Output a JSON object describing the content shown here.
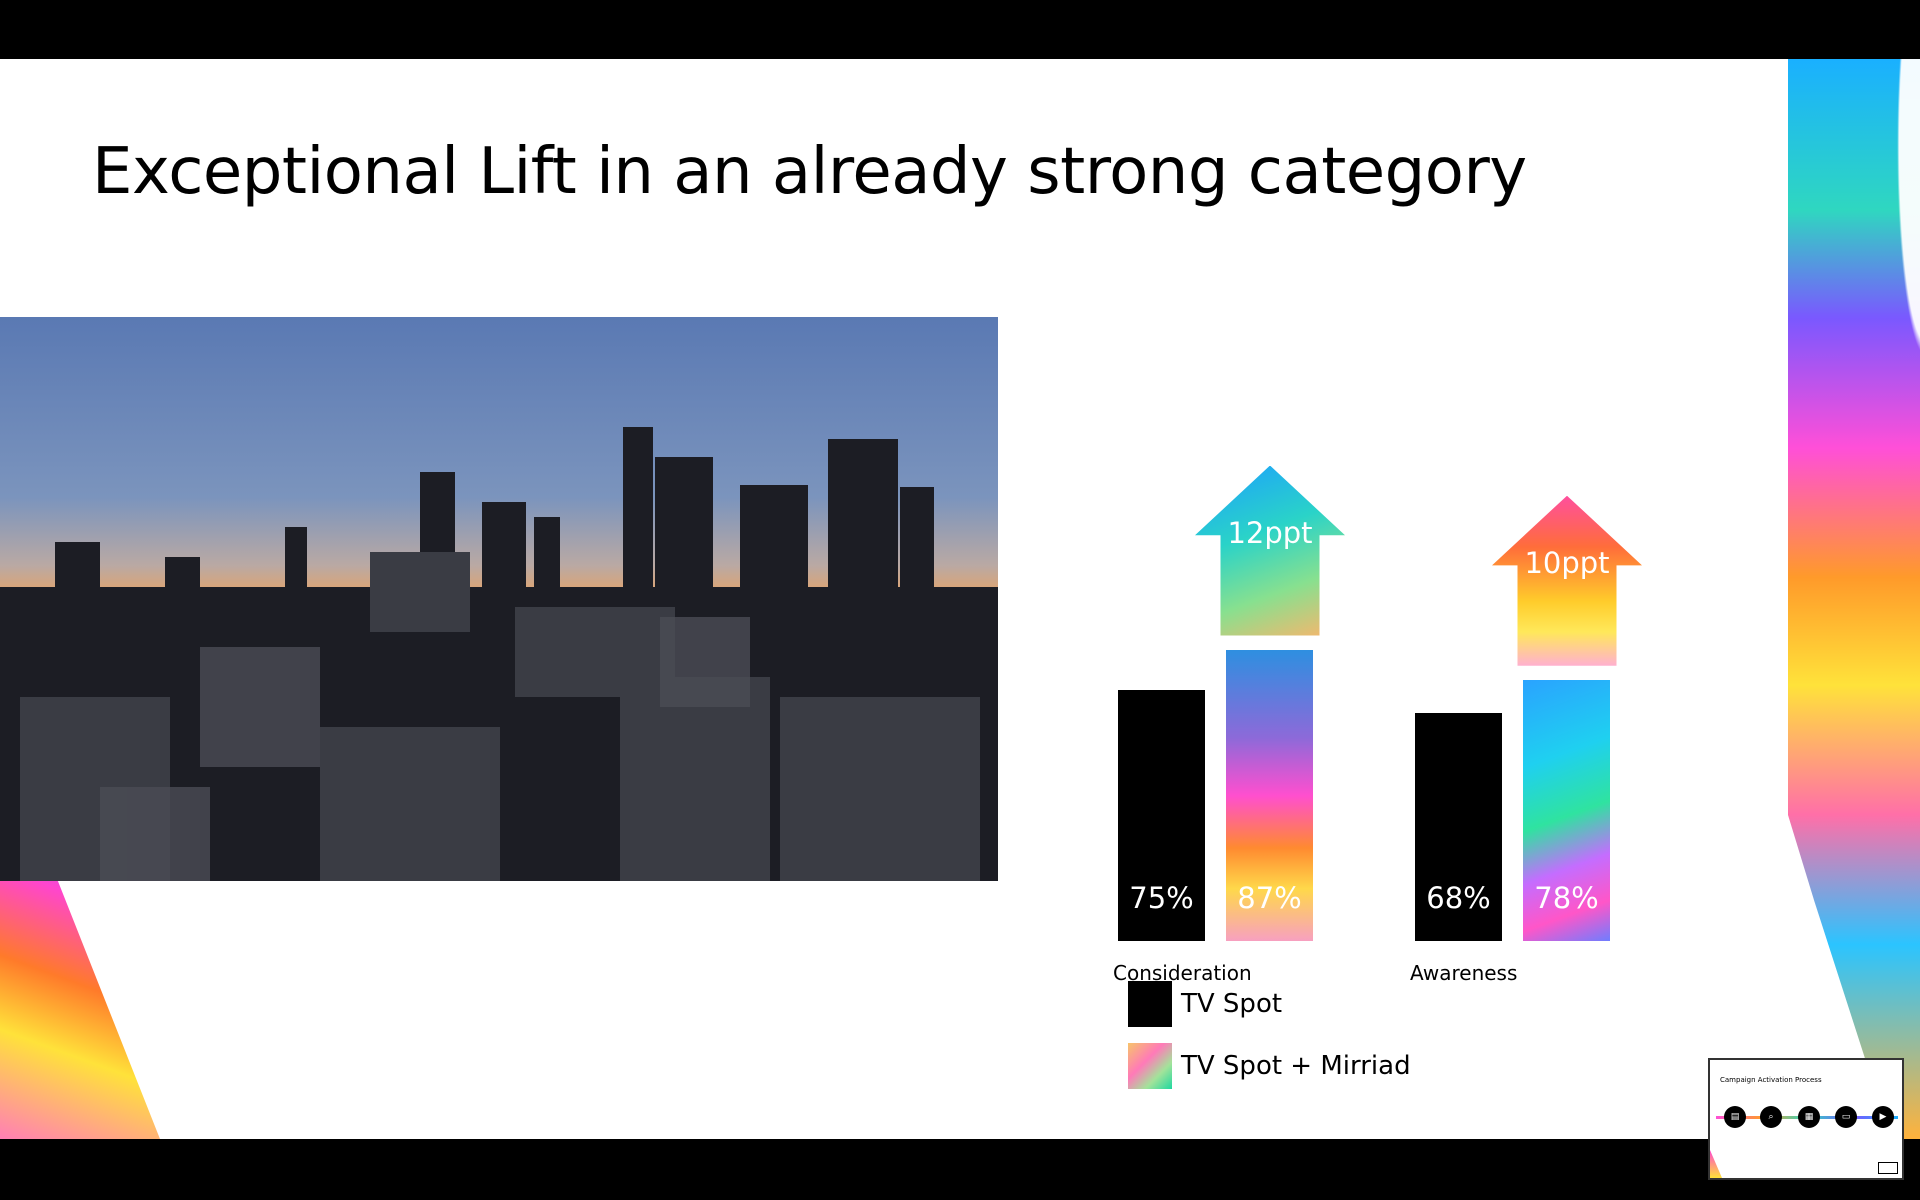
{
  "slide": {
    "title": "Exceptional Lift in an already strong category"
  },
  "chart_data": {
    "type": "bar",
    "title": "",
    "categories": [
      "Consideration",
      "Awareness"
    ],
    "series": [
      {
        "name": "TV Spot",
        "values": [
          75,
          68
        ]
      },
      {
        "name": "TV Spot + Mirriad",
        "values": [
          87,
          78
        ]
      }
    ],
    "value_labels": {
      "TV Spot": [
        "75%",
        "68%"
      ],
      "TV Spot + Mirriad": [
        "87%",
        "78%"
      ]
    },
    "lift_labels": [
      "12ppt",
      "10ppt"
    ],
    "ylim": [
      0,
      100
    ],
    "legend": "bottom",
    "colors": {
      "tv_spot": "#000000"
    }
  },
  "legend": {
    "items": [
      "TV Spot",
      "TV Spot + Mirriad"
    ]
  },
  "thumbnail": {
    "title": "Campaign Activation Process",
    "icons": [
      "document-icon",
      "search-icon",
      "calendar-icon",
      "screen-icon",
      "play-icon"
    ]
  }
}
